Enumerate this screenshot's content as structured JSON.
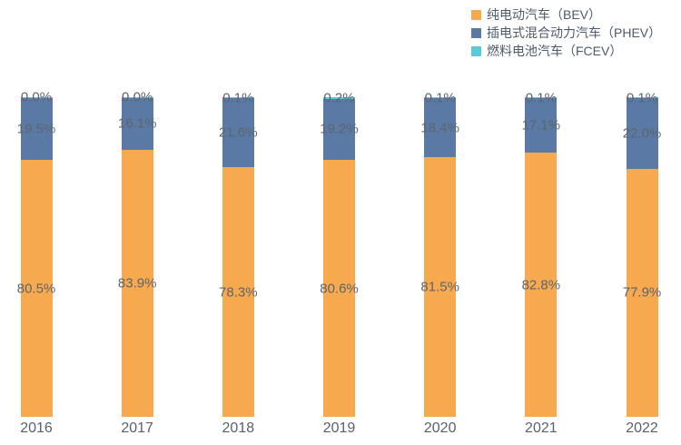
{
  "chart_data": {
    "type": "bar",
    "stacked": true,
    "percent_stacked": true,
    "title": "",
    "xlabel": "",
    "ylabel": "",
    "ylim": [
      0,
      100
    ],
    "grid": false,
    "axes_visible": false,
    "legend_position": "top-right",
    "categories": [
      "2016",
      "2017",
      "2018",
      "2019",
      "2020",
      "2021",
      "2022"
    ],
    "series": [
      {
        "name": "纯电动汽车（BEV）",
        "color": "#f7a950",
        "values": [
          80.5,
          83.9,
          78.3,
          80.6,
          81.5,
          82.8,
          77.9
        ],
        "labels": [
          "80.5%",
          "83.9%",
          "78.3%",
          "80.6%",
          "81.5%",
          "82.8%",
          "77.9%"
        ]
      },
      {
        "name": "插电式混合动力汽车（PHEV）",
        "color": "#5a7aa5",
        "values": [
          19.5,
          16.1,
          21.6,
          19.2,
          18.4,
          17.1,
          22.0
        ],
        "labels": [
          "19.5%",
          "16.1%",
          "21.6%",
          "19.2%",
          "18.4%",
          "17.1%",
          "22.0%"
        ]
      },
      {
        "name": "燃料电池汽车（FCEV）",
        "color": "#5cc9d8",
        "values": [
          0.0,
          0.0,
          0.1,
          0.2,
          0.1,
          0.1,
          0.1
        ],
        "labels": [
          "0.0%",
          "0.0%",
          "0.1%",
          "0.2%",
          "0.1%",
          "0.1%",
          "0.1%"
        ]
      }
    ]
  },
  "legend": {
    "items": [
      {
        "label": "纯电动汽车（BEV）",
        "color": "#f7a950"
      },
      {
        "label": "插电式混合动力汽车（PHEV）",
        "color": "#5a7aa5"
      },
      {
        "label": "燃料电池汽车（FCEV）",
        "color": "#5cc9d8"
      }
    ]
  },
  "colors": {
    "background": "#ffffff",
    "bev": "#f7a950",
    "phev": "#5a7aa5",
    "fcev": "#5cc9d8",
    "data_label": "#5e646c",
    "axis_label": "#57616f",
    "legend_label": "#4d5a6b"
  }
}
